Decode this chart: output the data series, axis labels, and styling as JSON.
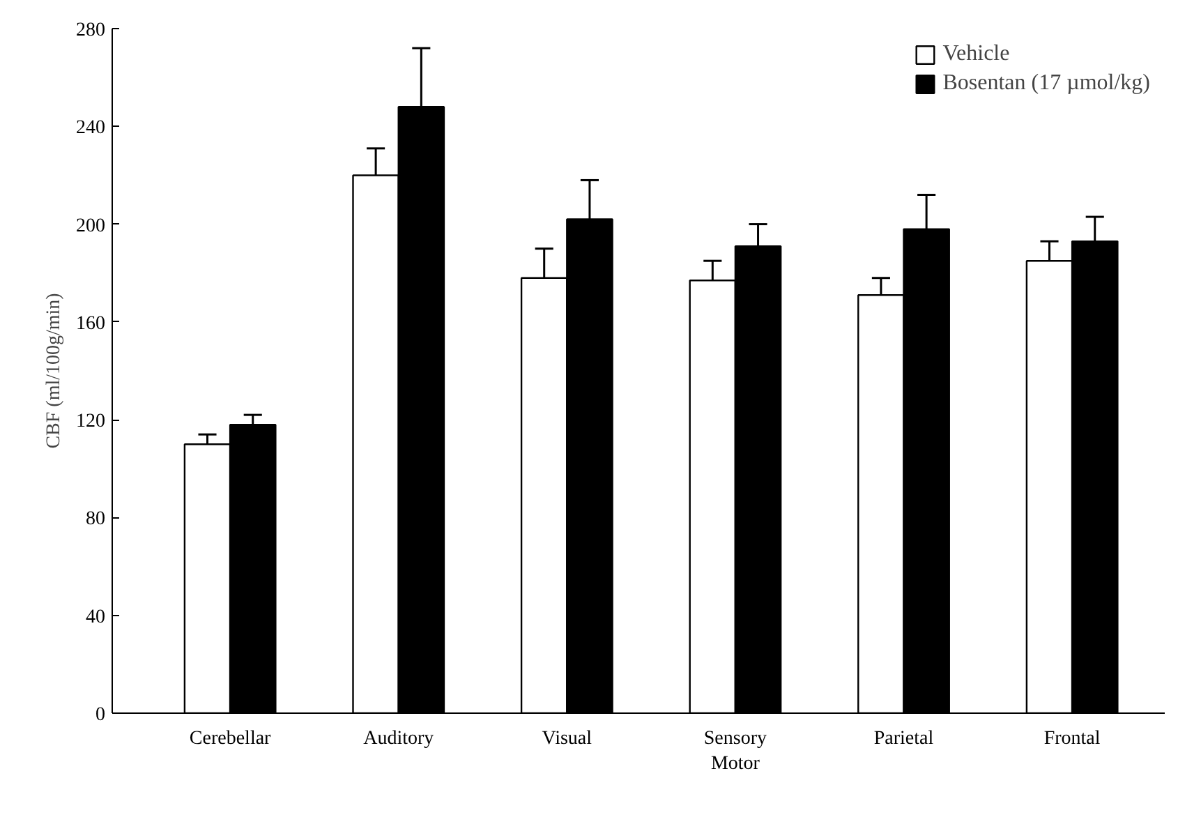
{
  "chart_data": {
    "type": "bar",
    "ylabel": "CBF (ml/100g/min)",
    "categories": [
      "Cerebellar",
      "Auditory",
      "Visual",
      "Sensory\nMotor",
      "Parietal",
      "Frontal"
    ],
    "series": [
      {
        "name": "Vehicle",
        "color": "#ffffff",
        "values": [
          110,
          220,
          178,
          177,
          171,
          185
        ],
        "errors": [
          [
            110,
            114
          ],
          [
            220,
            231
          ],
          [
            178,
            190
          ],
          [
            177,
            185
          ],
          [
            171,
            178
          ],
          [
            185,
            193
          ]
        ]
      },
      {
        "name": "Bosentan (17 µmol/kg)",
        "color": "#000000",
        "values": [
          118,
          248,
          202,
          191,
          198,
          193
        ],
        "errors": [
          [
            118,
            122
          ],
          [
            248,
            272
          ],
          [
            202,
            218
          ],
          [
            191,
            200
          ],
          [
            198,
            212
          ],
          [
            193,
            203
          ]
        ]
      }
    ],
    "ylim": [
      0,
      280
    ],
    "yticks": [
      0,
      40,
      80,
      120,
      160,
      200,
      240,
      280
    ],
    "grid": false,
    "legend": "top right"
  }
}
